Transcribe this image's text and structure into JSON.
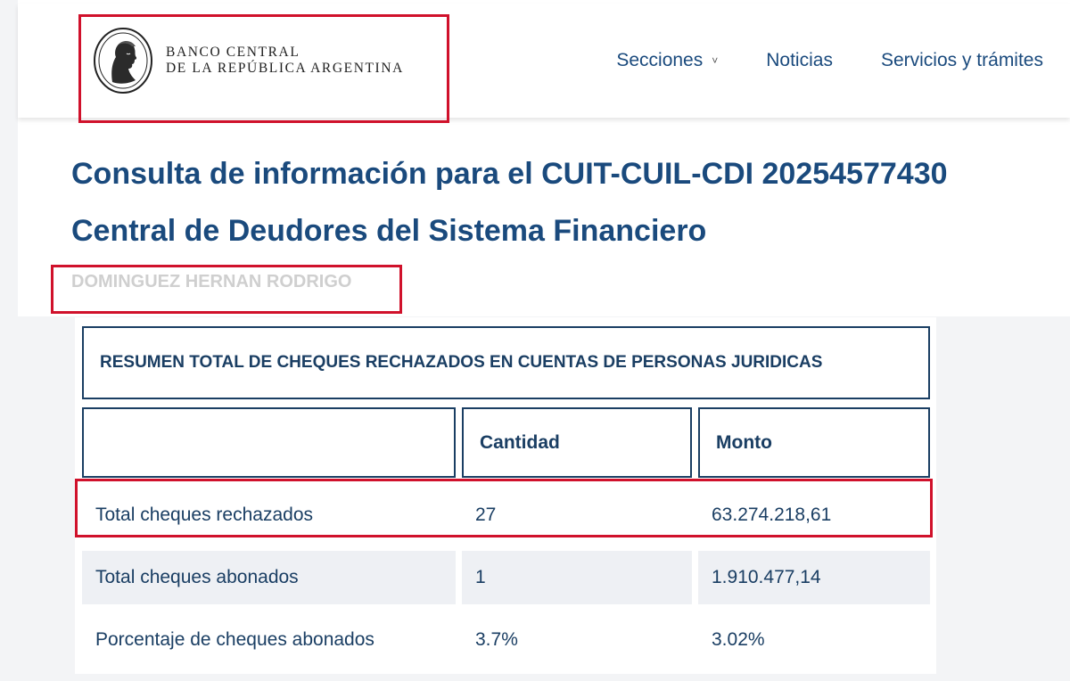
{
  "header": {
    "logo_line1": "BANCO CENTRAL",
    "logo_line2": "DE LA REPÚBLICA ARGENTINA",
    "logo_icon": "republic-effigy-seal",
    "nav": [
      {
        "label": "Secciones",
        "has_dropdown": true
      },
      {
        "label": "Noticias"
      },
      {
        "label": "Servicios y trámites"
      }
    ]
  },
  "page": {
    "title_line1": "Consulta de información para el CUIT-CUIL-CDI 20254577430",
    "title_line2": "Central de Deudores del Sistema Financiero",
    "person_name": "DOMINGUEZ HERNAN RODRIGO"
  },
  "table": {
    "caption": "RESUMEN TOTAL DE CHEQUES RECHAZADOS EN CUENTAS DE PERSONAS JURIDICAS",
    "headers": [
      "",
      "Cantidad",
      "Monto"
    ],
    "rows": [
      {
        "label": "Total cheques rechazados",
        "cantidad": "27",
        "monto": "63.274.218,61"
      },
      {
        "label": "Total cheques abonados",
        "cantidad": "1",
        "monto": "1.910.477,14"
      },
      {
        "label": "Porcentaje de cheques abonados",
        "cantidad": "3.7%",
        "monto": "3.02%"
      }
    ]
  },
  "colors": {
    "brand_blue": "#1a4a7d",
    "highlight_red": "#d0112b",
    "border_navy": "#1a3e63"
  }
}
